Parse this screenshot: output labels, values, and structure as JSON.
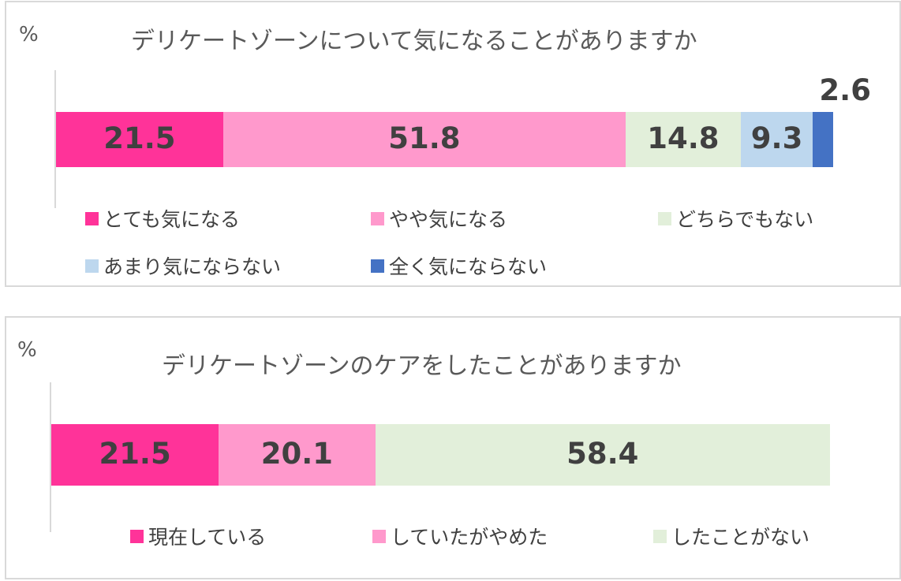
{
  "chart_data": [
    {
      "type": "bar",
      "orientation": "horizontal",
      "stacked": true,
      "unit": "%",
      "title": "デリケートゾーンについて気になることがありますか",
      "categories": [
        ""
      ],
      "series": [
        {
          "name": "とても気になる",
          "values": [
            21.5
          ],
          "color": "#ff3399"
        },
        {
          "name": "やや気になる",
          "values": [
            51.8
          ],
          "color": "#ff99cc"
        },
        {
          "name": "どちらでもない",
          "values": [
            14.8
          ],
          "color": "#e2efda"
        },
        {
          "name": "あまり気にならない",
          "values": [
            9.3
          ],
          "color": "#bdd7ee"
        },
        {
          "name": "全く気にならない",
          "values": [
            2.6
          ],
          "color": "#4472c4"
        }
      ],
      "data_labels": [
        "21.5",
        "51.8",
        "14.8",
        "9.3",
        "2.6"
      ],
      "legend_position": "bottom",
      "xlim": [
        0,
        100
      ],
      "grid": false
    },
    {
      "type": "bar",
      "orientation": "horizontal",
      "stacked": true,
      "unit": "%",
      "title": "デリケートゾーンのケアをしたことがありますか",
      "categories": [
        ""
      ],
      "series": [
        {
          "name": "現在している",
          "values": [
            21.5
          ],
          "color": "#ff3399"
        },
        {
          "name": "していたがやめた",
          "values": [
            20.1
          ],
          "color": "#ff99cc"
        },
        {
          "name": "したことがない",
          "values": [
            58.4
          ],
          "color": "#e2efda"
        }
      ],
      "data_labels": [
        "21.5",
        "20.1",
        "58.4"
      ],
      "legend_position": "bottom",
      "xlim": [
        0,
        100
      ],
      "grid": false
    }
  ]
}
